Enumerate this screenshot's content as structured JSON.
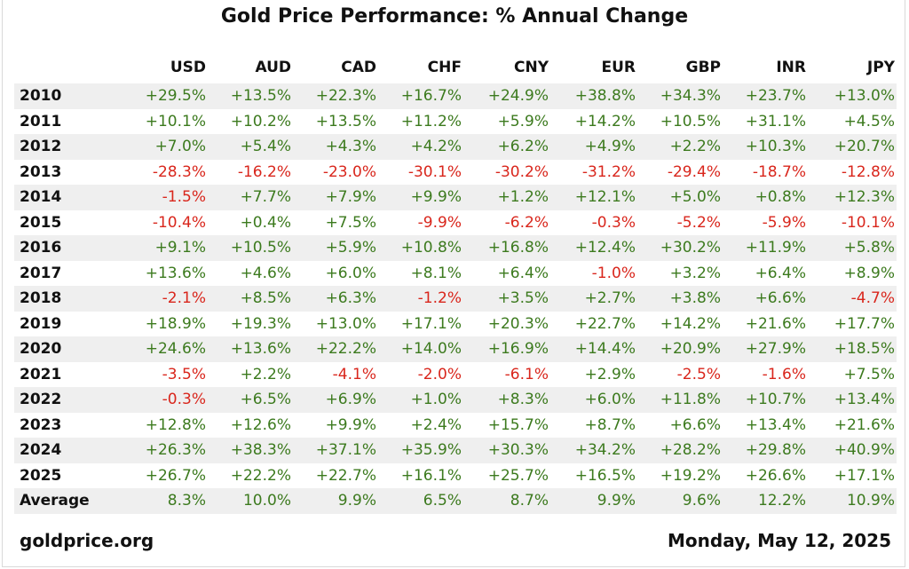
{
  "chart_data": {
    "type": "table",
    "title": "Gold Price Performance: % Annual Change",
    "columns": [
      "USD",
      "AUD",
      "CAD",
      "CHF",
      "CNY",
      "EUR",
      "GBP",
      "INR",
      "JPY"
    ],
    "rows": [
      {
        "label": "2010",
        "values": [
          "+29.5%",
          "+13.5%",
          "+22.3%",
          "+16.7%",
          "+24.9%",
          "+38.8%",
          "+34.3%",
          "+23.7%",
          "+13.0%"
        ]
      },
      {
        "label": "2011",
        "values": [
          "+10.1%",
          "+10.2%",
          "+13.5%",
          "+11.2%",
          "+5.9%",
          "+14.2%",
          "+10.5%",
          "+31.1%",
          "+4.5%"
        ]
      },
      {
        "label": "2012",
        "values": [
          "+7.0%",
          "+5.4%",
          "+4.3%",
          "+4.2%",
          "+6.2%",
          "+4.9%",
          "+2.2%",
          "+10.3%",
          "+20.7%"
        ]
      },
      {
        "label": "2013",
        "values": [
          "-28.3%",
          "-16.2%",
          "-23.0%",
          "-30.1%",
          "-30.2%",
          "-31.2%",
          "-29.4%",
          "-18.7%",
          "-12.8%"
        ]
      },
      {
        "label": "2014",
        "values": [
          "-1.5%",
          "+7.7%",
          "+7.9%",
          "+9.9%",
          "+1.2%",
          "+12.1%",
          "+5.0%",
          "+0.8%",
          "+12.3%"
        ]
      },
      {
        "label": "2015",
        "values": [
          "-10.4%",
          "+0.4%",
          "+7.5%",
          "-9.9%",
          "-6.2%",
          "-0.3%",
          "-5.2%",
          "-5.9%",
          "-10.1%"
        ]
      },
      {
        "label": "2016",
        "values": [
          "+9.1%",
          "+10.5%",
          "+5.9%",
          "+10.8%",
          "+16.8%",
          "+12.4%",
          "+30.2%",
          "+11.9%",
          "+5.8%"
        ]
      },
      {
        "label": "2017",
        "values": [
          "+13.6%",
          "+4.6%",
          "+6.0%",
          "+8.1%",
          "+6.4%",
          "-1.0%",
          "+3.2%",
          "+6.4%",
          "+8.9%"
        ]
      },
      {
        "label": "2018",
        "values": [
          "-2.1%",
          "+8.5%",
          "+6.3%",
          "-1.2%",
          "+3.5%",
          "+2.7%",
          "+3.8%",
          "+6.6%",
          "-4.7%"
        ]
      },
      {
        "label": "2019",
        "values": [
          "+18.9%",
          "+19.3%",
          "+13.0%",
          "+17.1%",
          "+20.3%",
          "+22.7%",
          "+14.2%",
          "+21.6%",
          "+17.7%"
        ]
      },
      {
        "label": "2020",
        "values": [
          "+24.6%",
          "+13.6%",
          "+22.2%",
          "+14.0%",
          "+16.9%",
          "+14.4%",
          "+20.9%",
          "+27.9%",
          "+18.5%"
        ]
      },
      {
        "label": "2021",
        "values": [
          "-3.5%",
          "+2.2%",
          "-4.1%",
          "-2.0%",
          "-6.1%",
          "+2.9%",
          "-2.5%",
          "-1.6%",
          "+7.5%"
        ]
      },
      {
        "label": "2022",
        "values": [
          "-0.3%",
          "+6.5%",
          "+6.9%",
          "+1.0%",
          "+8.3%",
          "+6.0%",
          "+11.8%",
          "+10.7%",
          "+13.4%"
        ]
      },
      {
        "label": "2023",
        "values": [
          "+12.8%",
          "+12.6%",
          "+9.9%",
          "+2.4%",
          "+15.7%",
          "+8.7%",
          "+6.6%",
          "+13.4%",
          "+21.6%"
        ]
      },
      {
        "label": "2024",
        "values": [
          "+26.3%",
          "+38.3%",
          "+37.1%",
          "+35.9%",
          "+30.3%",
          "+34.2%",
          "+28.2%",
          "+29.8%",
          "+40.9%"
        ]
      },
      {
        "label": "2025",
        "values": [
          "+26.7%",
          "+22.2%",
          "+22.7%",
          "+16.1%",
          "+25.7%",
          "+16.5%",
          "+19.2%",
          "+26.6%",
          "+17.1%"
        ]
      }
    ],
    "average": {
      "label": "Average",
      "values": [
        "8.3%",
        "10.0%",
        "9.9%",
        "6.5%",
        "8.7%",
        "9.9%",
        "9.6%",
        "12.2%",
        "10.9%"
      ]
    },
    "colors": {
      "positive": "#3c7a1e",
      "negative": "#d9261c",
      "stripe": "#efefef"
    }
  },
  "footer": {
    "source": "goldprice.org",
    "date": "Monday, May 12, 2025"
  }
}
